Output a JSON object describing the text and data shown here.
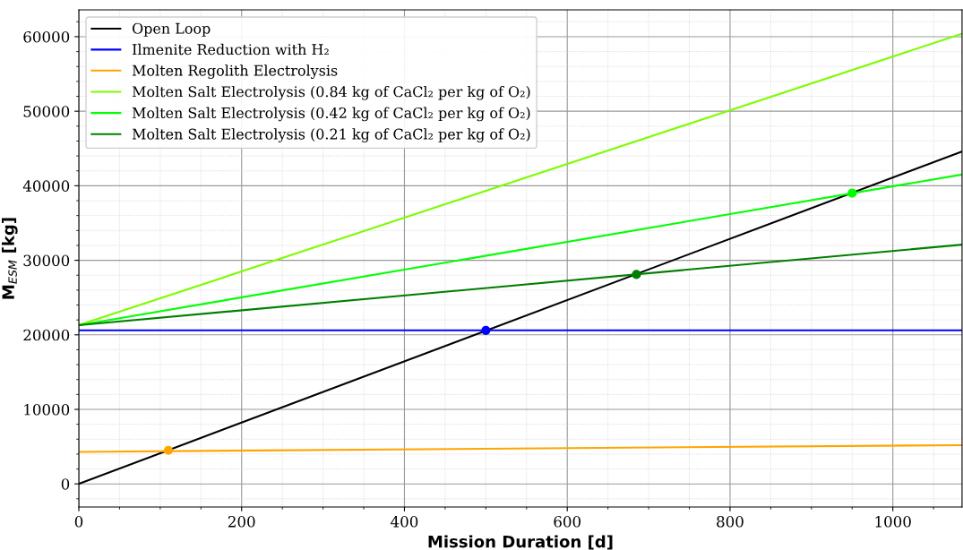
{
  "chart_data": {
    "type": "line",
    "xlabel": "Mission Duration [d]",
    "ylabel": "M$_{ESM}$ [kg]",
    "xlim": [
      0,
      1085
    ],
    "ylim": [
      -3100,
      63600
    ],
    "xticks": [
      0,
      {
        "value": 50,
        "label": null
      },
      {
        "value": 100,
        "label": null
      },
      {
        "value": 150,
        "label": null
      },
      200,
      {
        "value": 250,
        "label": null
      },
      {
        "value": 300,
        "label": null
      },
      {
        "value": 350,
        "label": null
      },
      400,
      {
        "value": 450,
        "label": null
      },
      {
        "value": 500,
        "label": null
      },
      {
        "value": 550,
        "label": null
      },
      600,
      {
        "value": 650,
        "label": null
      },
      {
        "value": 700,
        "label": null
      },
      {
        "value": 750,
        "label": null
      },
      800,
      {
        "value": 850,
        "label": null
      },
      {
        "value": 900,
        "label": null
      },
      {
        "value": 950,
        "label": null
      },
      1000,
      {
        "value": 1050,
        "label": null
      }
    ],
    "yticks": [
      {
        "value": -2000,
        "label": null
      },
      0,
      {
        "value": 2000,
        "label": null
      },
      {
        "value": 4000,
        "label": null
      },
      {
        "value": 6000,
        "label": null
      },
      {
        "value": 8000,
        "label": null
      },
      10000,
      {
        "value": 12000,
        "label": null
      },
      {
        "value": 14000,
        "label": null
      },
      {
        "value": 16000,
        "label": null
      },
      {
        "value": 18000,
        "label": null
      },
      20000,
      {
        "value": 22000,
        "label": null
      },
      {
        "value": 24000,
        "label": null
      },
      {
        "value": 26000,
        "label": null
      },
      {
        "value": 28000,
        "label": null
      },
      30000,
      {
        "value": 32000,
        "label": null
      },
      {
        "value": 34000,
        "label": null
      },
      {
        "value": 36000,
        "label": null
      },
      {
        "value": 38000,
        "label": null
      },
      40000,
      {
        "value": 42000,
        "label": null
      },
      {
        "value": 44000,
        "label": null
      },
      {
        "value": 46000,
        "label": null
      },
      {
        "value": 48000,
        "label": null
      },
      50000,
      {
        "value": 52000,
        "label": null
      },
      {
        "value": 54000,
        "label": null
      },
      {
        "value": 56000,
        "label": null
      },
      {
        "value": 58000,
        "label": null
      },
      60000,
      {
        "value": 62000,
        "label": null
      }
    ],
    "grid": true,
    "legend": "top left",
    "marker": "none",
    "line_style": "solid",
    "series": [
      {
        "name": "Open Loop",
        "color": "#000000",
        "x": [
          0,
          1085
        ],
        "values": [
          0,
          44600
        ]
      },
      {
        "name": "Ilmenite Reduction with H₂",
        "color": "#0000ff",
        "x": [
          0,
          1085
        ],
        "values": [
          20600,
          20600
        ]
      },
      {
        "name": "Molten Regolith Electrolysis",
        "color": "#ffa500",
        "x": [
          0,
          1085
        ],
        "values": [
          4300,
          5200
        ]
      },
      {
        "name": "Molten Salt Electrolysis (0.84 kg of CaCl₂ per kg of O₂)",
        "color": "#7cfc00",
        "x": [
          0,
          1085
        ],
        "values": [
          21300,
          60400
        ]
      },
      {
        "name": "Molten Salt Electrolysis (0.42 kg of CaCl₂ per kg of O₂)",
        "color": "#00ff00",
        "x": [
          0,
          1085
        ],
        "values": [
          21300,
          41500
        ]
      },
      {
        "name": "Molten Salt Electrolysis (0.21 kg of CaCl₂ per kg of O₂)",
        "color": "#008000",
        "x": [
          0,
          1085
        ],
        "values": [
          21300,
          32100
        ]
      },
      {
        "type": "scatter",
        "marker": "circle",
        "x": [
          110,
          500,
          685,
          950
        ],
        "values": [
          4500,
          20600,
          28100,
          39000
        ],
        "colors": [
          "#ffa500",
          "#0000ff",
          "#008000",
          "#00ff00"
        ]
      }
    ]
  }
}
